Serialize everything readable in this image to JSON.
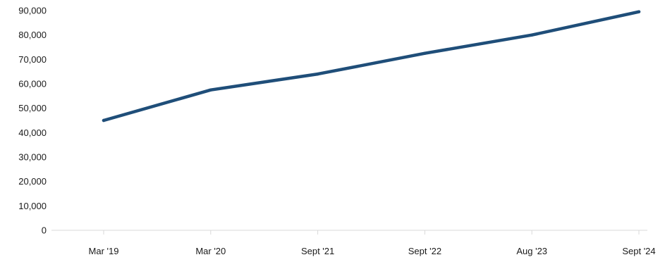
{
  "chart_data": {
    "type": "line",
    "title": "",
    "xlabel": "",
    "ylabel": "",
    "categories": [
      "Mar '19",
      "Mar '20",
      "Sept '21",
      "Sept '22",
      "Aug '23",
      "Sept '24"
    ],
    "ylim": [
      0,
      90000
    ],
    "yticks": [
      0,
      10000,
      20000,
      30000,
      40000,
      50000,
      60000,
      70000,
      80000,
      90000
    ],
    "ytick_labels": [
      "0",
      "10,000",
      "20,000",
      "30,000",
      "40,000",
      "50,000",
      "60,000",
      "70,000",
      "80,000",
      "90,000"
    ],
    "series": [
      {
        "values": [
          45000,
          57500,
          64000,
          72500,
          80000,
          89500
        ],
        "color": "#1f4e79"
      }
    ],
    "grid": false,
    "legend": "none"
  }
}
